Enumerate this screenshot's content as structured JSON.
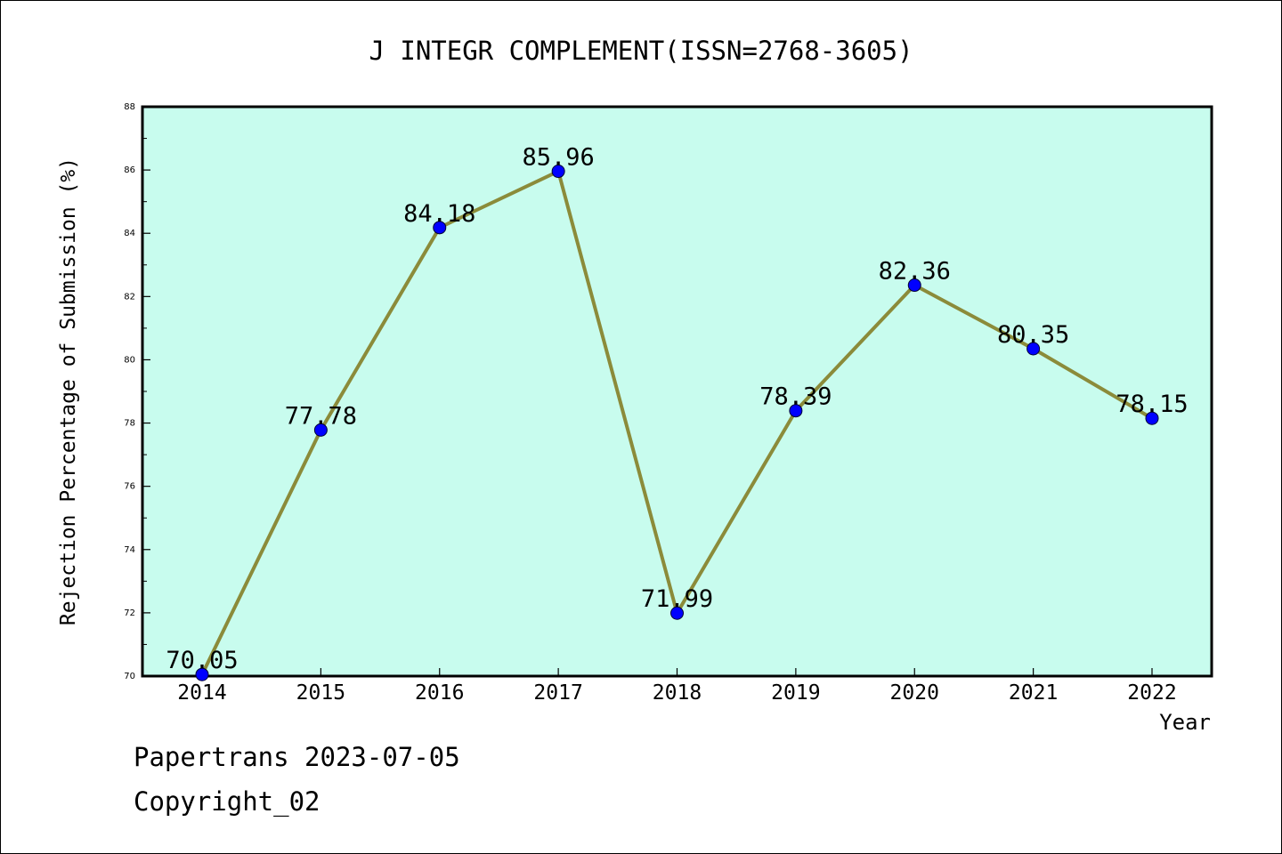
{
  "chart_data": {
    "type": "line",
    "title": "J INTEGR COMPLEMENT(ISSN=2768-3605)",
    "xlabel": "Year",
    "ylabel": "Rejection Percentage of Submission (%)",
    "categories": [
      "2014",
      "2015",
      "2016",
      "2017",
      "2018",
      "2019",
      "2020",
      "2021",
      "2022"
    ],
    "series": [
      {
        "values": [
          70.05,
          77.78,
          84.18,
          85.96,
          71.99,
          78.39,
          82.36,
          80.35,
          78.15
        ],
        "data_labels": [
          "70.05",
          "77.78",
          "84.18",
          "85.96",
          "71.99",
          "78.39",
          "82.36",
          "80.35",
          "78.15"
        ]
      }
    ],
    "ylim": [
      70,
      88
    ],
    "yticks": [
      "70",
      "72",
      "74",
      "76",
      "78",
      "80",
      "82",
      "84",
      "86",
      "88"
    ],
    "grid": false,
    "legend": "none",
    "colors": {
      "plot_background": "#c8fcee",
      "line": "#8b8b3a",
      "marker": "#0000ff"
    }
  },
  "footer": {
    "date_line": "Papertrans 2023-07-05",
    "copyright_line": "Copyright_02"
  }
}
